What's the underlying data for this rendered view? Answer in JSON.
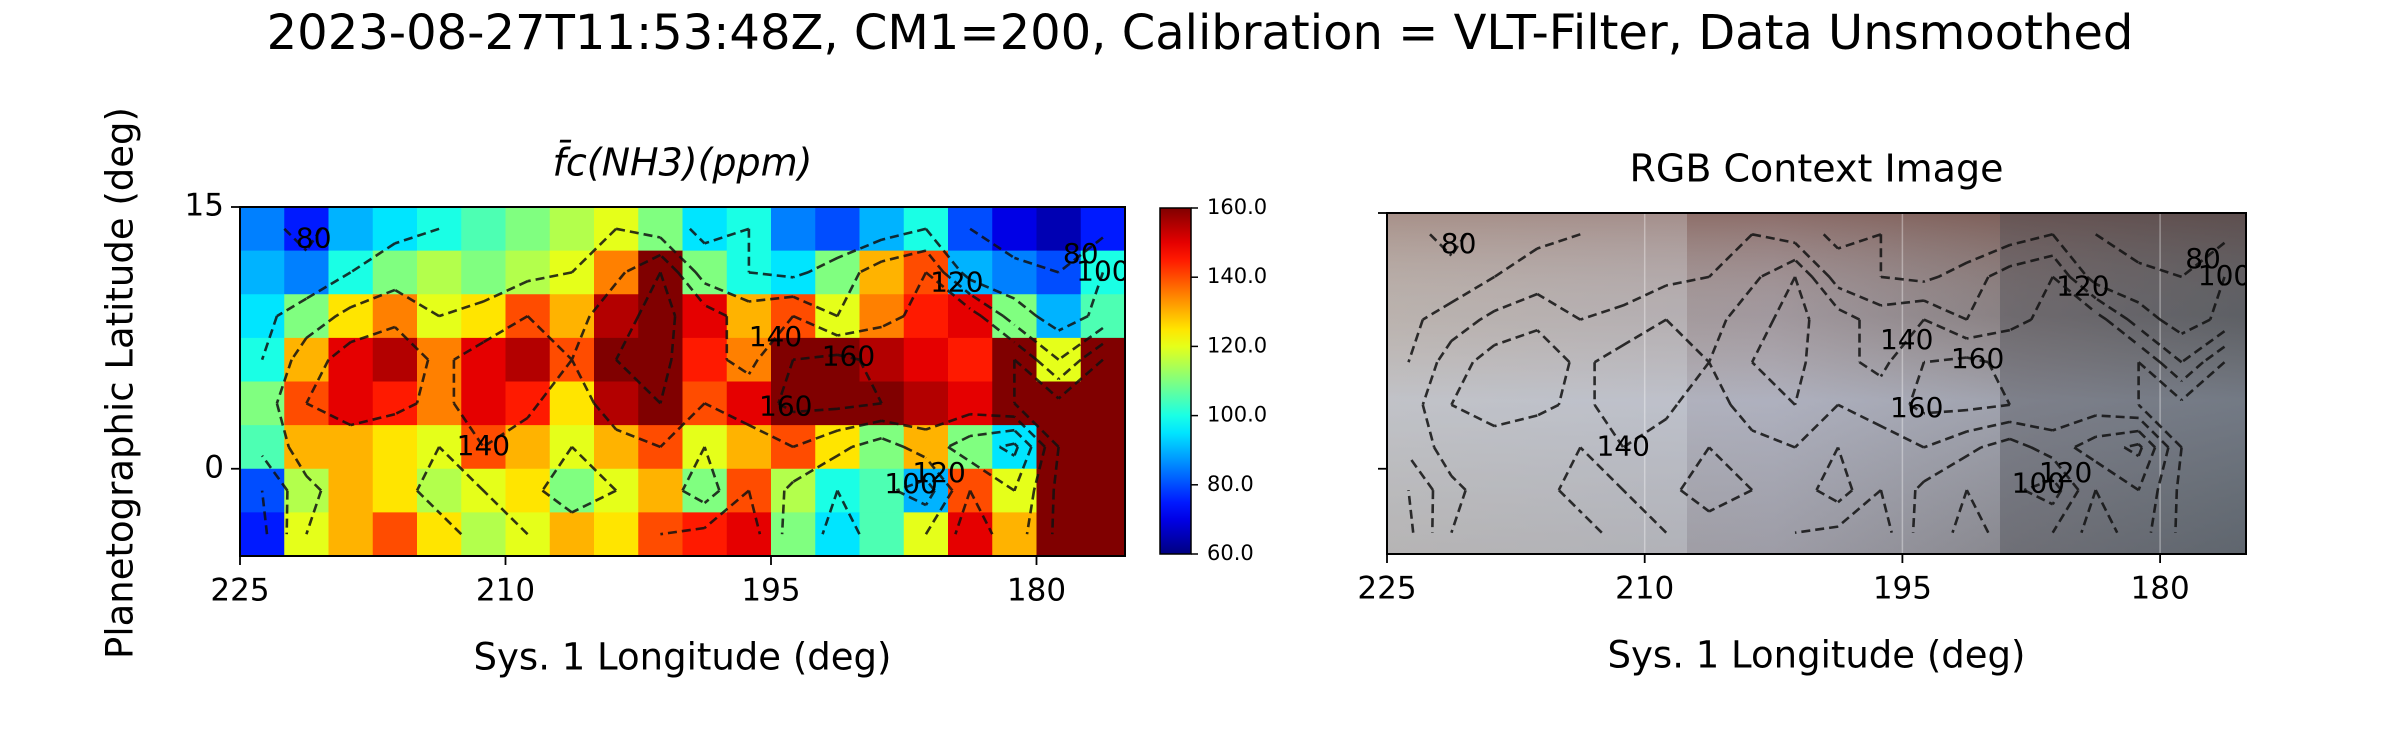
{
  "figure": {
    "title": "2023-08-27T11:53:48Z, CM1=200, Calibration = VLT-Filter, Data Unsmoothed",
    "ylabel": "Planetographic Latitude (deg)"
  },
  "chart_data": [
    {
      "type": "heatmap",
      "title": "f̄c(NH3)(ppm)",
      "xlabel": "Sys. 1 Longitude (deg)",
      "x": [
        223.75,
        221.25,
        218.75,
        216.25,
        213.75,
        211.25,
        208.75,
        206.25,
        203.75,
        201.25,
        198.75,
        196.25,
        193.75,
        191.25,
        188.75,
        186.25,
        183.75,
        181.25,
        178.75,
        176.25
      ],
      "y": [
        13.75,
        11.25,
        8.75,
        6.25,
        3.75,
        1.25,
        -1.25,
        -3.75
      ],
      "values": [
        [
          85,
          75,
          90,
          95,
          100,
          105,
          110,
          115,
          120,
          110,
          95,
          100,
          85,
          80,
          90,
          100,
          80,
          70,
          65,
          75
        ],
        [
          90,
          85,
          100,
          110,
          115,
          110,
          115,
          120,
          135,
          160,
          110,
          100,
          95,
          110,
          130,
          140,
          90,
          85,
          80,
          100
        ],
        [
          95,
          110,
          125,
          135,
          120,
          125,
          140,
          130,
          155,
          165,
          150,
          130,
          140,
          120,
          135,
          145,
          150,
          110,
          90,
          105
        ],
        [
          100,
          130,
          150,
          155,
          135,
          150,
          155,
          140,
          160,
          165,
          145,
          135,
          160,
          165,
          155,
          150,
          145,
          160,
          120,
          160
        ],
        [
          110,
          140,
          150,
          145,
          135,
          150,
          145,
          125,
          155,
          160,
          140,
          150,
          165,
          165,
          160,
          155,
          150,
          160,
          165,
          165
        ],
        [
          105,
          130,
          130,
          125,
          120,
          140,
          130,
          120,
          130,
          140,
          120,
          130,
          140,
          125,
          110,
          130,
          110,
          95,
          160,
          165
        ],
        [
          80,
          115,
          130,
          125,
          115,
          120,
          125,
          110,
          120,
          130,
          110,
          140,
          115,
          100,
          105,
          90,
          140,
          120,
          165,
          165
        ],
        [
          75,
          120,
          130,
          140,
          125,
          115,
          120,
          130,
          125,
          140,
          145,
          150,
          110,
          95,
          105,
          120,
          150,
          130,
          165,
          165
        ]
      ],
      "xlim": [
        225,
        175
      ],
      "ylim": [
        -5,
        15
      ],
      "xticks": [
        225,
        210,
        195,
        180
      ],
      "yticks": [
        0,
        15
      ],
      "colorscale": "jet",
      "clim": [
        60,
        160
      ],
      "colorbar_ticks": [
        {
          "value": 60,
          "label": "60.0"
        },
        {
          "value": 80,
          "label": "80.0"
        },
        {
          "value": 100,
          "label": "100.0"
        },
        {
          "value": 120,
          "label": "120.0"
        },
        {
          "value": 140,
          "label": "140.0"
        },
        {
          "value": 160,
          "label": "160.0"
        }
      ],
      "contour_levels": [
        80,
        100,
        120,
        140,
        160
      ]
    },
    {
      "type": "image",
      "title": "RGB Context Image",
      "xlabel": "Sys. 1 Longitude (deg)",
      "xlim": [
        225,
        175
      ],
      "ylim": [
        -5,
        15
      ],
      "xticks": [
        225,
        210,
        195,
        180
      ],
      "yticks": [
        0,
        15
      ],
      "grid": true,
      "contour_levels": [
        80,
        100,
        120,
        140,
        160
      ]
    }
  ]
}
